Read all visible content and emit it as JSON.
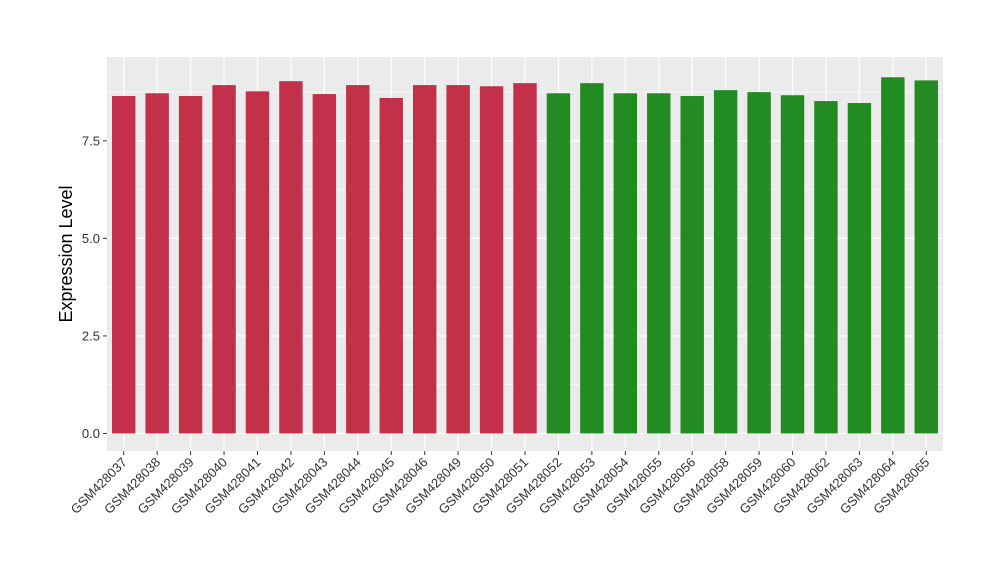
{
  "chart_data": {
    "type": "bar",
    "ylabel": "Expression Level",
    "xlabel": "",
    "ylim": [
      -0.45,
      9.65
    ],
    "yticks": [
      0.0,
      2.5,
      5.0,
      7.5
    ],
    "ytick_labels": [
      "0.0",
      "2.5",
      "5.0",
      "7.5"
    ],
    "grid": true,
    "legend": "none",
    "categories": [
      "GSM428037",
      "GSM428038",
      "GSM428039",
      "GSM428040",
      "GSM428041",
      "GSM428042",
      "GSM428043",
      "GSM428044",
      "GSM428045",
      "GSM428046",
      "GSM428049",
      "GSM428050",
      "GSM428051",
      "GSM428052",
      "GSM428053",
      "GSM428054",
      "GSM428055",
      "GSM428056",
      "GSM428058",
      "GSM428059",
      "GSM428060",
      "GSM428062",
      "GSM428063",
      "GSM428064",
      "GSM428065"
    ],
    "values": [
      8.65,
      8.72,
      8.65,
      8.93,
      8.77,
      9.03,
      8.7,
      8.93,
      8.6,
      8.93,
      8.93,
      8.9,
      8.98,
      8.72,
      8.98,
      8.72,
      8.72,
      8.65,
      8.8,
      8.75,
      8.67,
      8.52,
      8.47,
      9.13,
      9.05
    ],
    "bar_colors": [
      "#C3304A",
      "#C3304A",
      "#C3304A",
      "#C3304A",
      "#C3304A",
      "#C3304A",
      "#C3304A",
      "#C3304A",
      "#C3304A",
      "#C3304A",
      "#C3304A",
      "#C3304A",
      "#C3304A",
      "#228B22",
      "#228B22",
      "#228B22",
      "#228B22",
      "#228B22",
      "#228B22",
      "#228B22",
      "#228B22",
      "#228B22",
      "#228B22",
      "#228B22",
      "#228B22"
    ],
    "panel_background": "#EBEBEB",
    "grid_color": "#FFFFFF"
  }
}
